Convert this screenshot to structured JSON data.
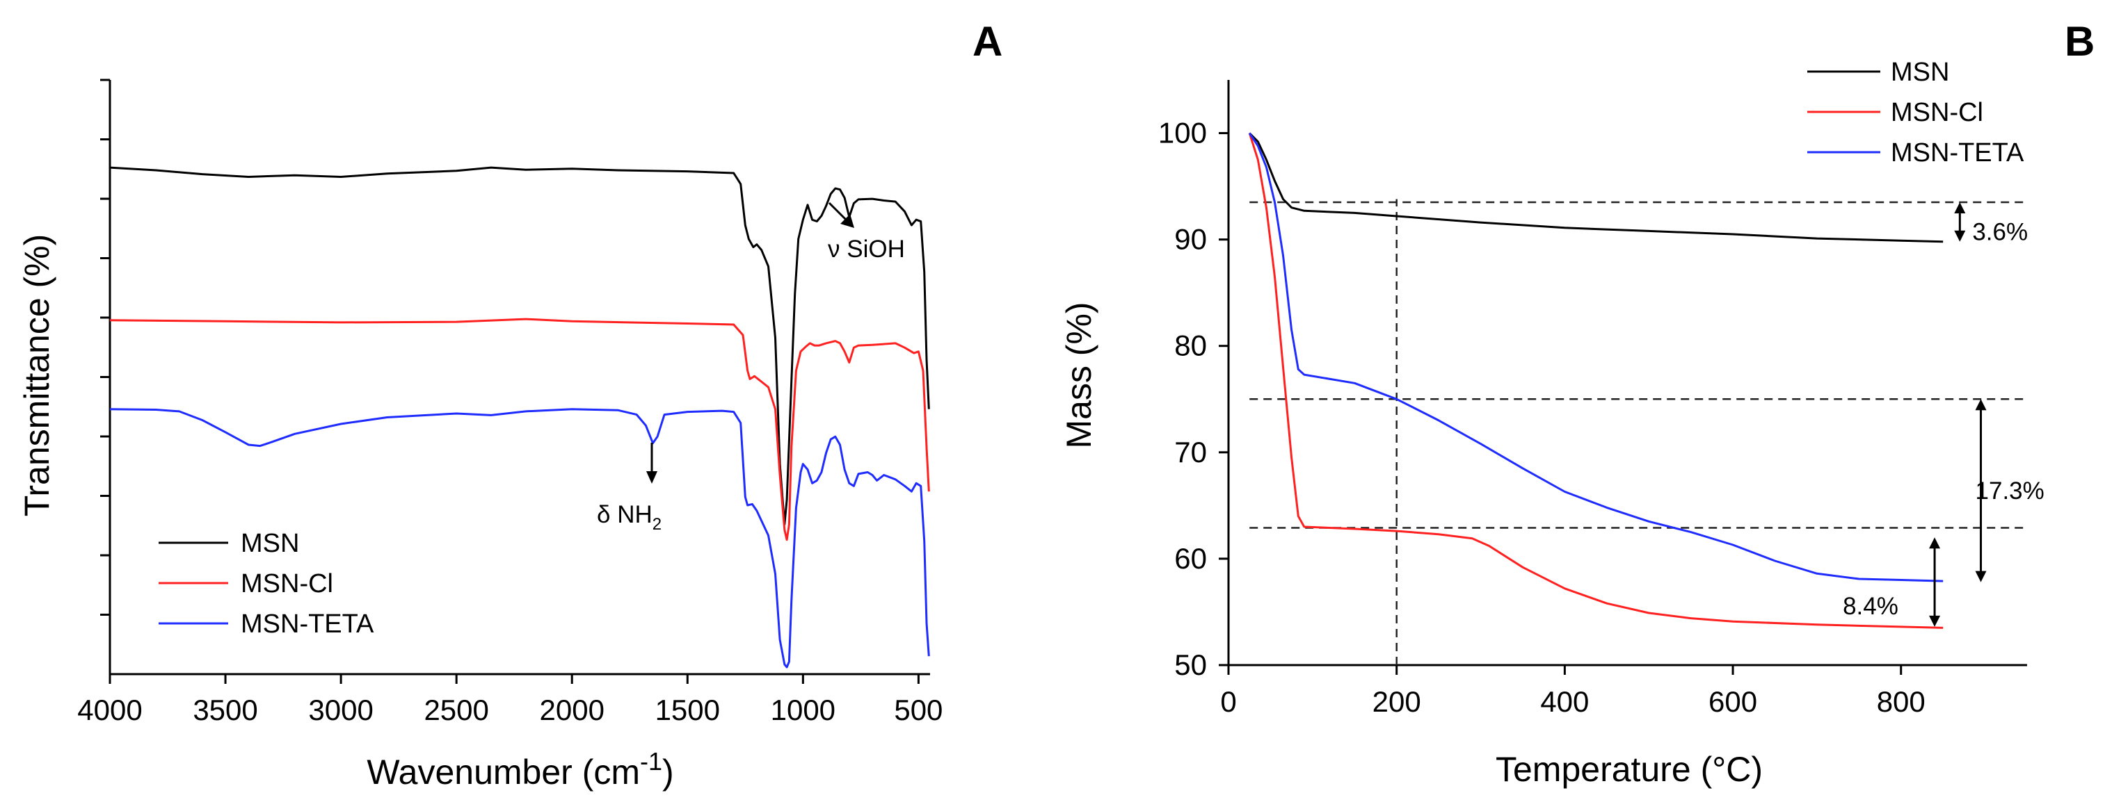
{
  "chart_data": [
    {
      "panel": "A",
      "type": "line",
      "xlabel": "Wavenumber (cm",
      "xlabel_sup": "-1",
      "xlabel_close": ")",
      "ylabel": "Transmittance (%)",
      "xlim": [
        4000,
        450
      ],
      "x_ticks": [
        4000,
        3500,
        3000,
        2500,
        2000,
        1500,
        1000,
        500
      ],
      "y_ticks_count": 10,
      "legend": {
        "position": "bottom-left"
      },
      "annotations": [
        {
          "label": "ν SiOH",
          "x": 830
        },
        {
          "label": "δ NH",
          "sub": "2",
          "x": 1650
        }
      ],
      "series": [
        {
          "name": "MSN",
          "color": "#000000",
          "points": [
            [
              4000,
              0.91
            ],
            [
              3800,
              0.905
            ],
            [
              3600,
              0.898
            ],
            [
              3400,
              0.893
            ],
            [
              3200,
              0.896
            ],
            [
              3000,
              0.893
            ],
            [
              2800,
              0.899
            ],
            [
              2500,
              0.904
            ],
            [
              2350,
              0.91
            ],
            [
              2200,
              0.906
            ],
            [
              2000,
              0.908
            ],
            [
              1800,
              0.905
            ],
            [
              1500,
              0.903
            ],
            [
              1300,
              0.9
            ],
            [
              1270,
              0.88
            ],
            [
              1250,
              0.805
            ],
            [
              1235,
              0.78
            ],
            [
              1215,
              0.765
            ],
            [
              1200,
              0.77
            ],
            [
              1180,
              0.76
            ],
            [
              1150,
              0.73
            ],
            [
              1120,
              0.6
            ],
            [
              1100,
              0.37
            ],
            [
              1080,
              0.26
            ],
            [
              1070,
              0.305
            ],
            [
              1050,
              0.52
            ],
            [
              1035,
              0.68
            ],
            [
              1020,
              0.78
            ],
            [
              1000,
              0.815
            ],
            [
              980,
              0.842
            ],
            [
              960,
              0.815
            ],
            [
              940,
              0.812
            ],
            [
              920,
              0.822
            ],
            [
              900,
              0.84
            ],
            [
              880,
              0.862
            ],
            [
              860,
              0.872
            ],
            [
              840,
              0.87
            ],
            [
              820,
              0.855
            ],
            [
              800,
              0.82
            ],
            [
              780,
              0.845
            ],
            [
              760,
              0.852
            ],
            [
              700,
              0.853
            ],
            [
              650,
              0.85
            ],
            [
              600,
              0.848
            ],
            [
              560,
              0.83
            ],
            [
              530,
              0.805
            ],
            [
              510,
              0.815
            ],
            [
              490,
              0.812
            ],
            [
              475,
              0.72
            ],
            [
              465,
              0.56
            ],
            [
              455,
              0.47
            ]
          ]
        },
        {
          "name": "MSN-Cl",
          "color": "#ff2020",
          "points": [
            [
              4000,
              0.632
            ],
            [
              3500,
              0.63
            ],
            [
              3000,
              0.628
            ],
            [
              2500,
              0.629
            ],
            [
              2200,
              0.634
            ],
            [
              2000,
              0.63
            ],
            [
              1500,
              0.626
            ],
            [
              1300,
              0.624
            ],
            [
              1260,
              0.605
            ],
            [
              1240,
              0.54
            ],
            [
              1230,
              0.525
            ],
            [
              1210,
              0.53
            ],
            [
              1150,
              0.51
            ],
            [
              1120,
              0.47
            ],
            [
              1100,
              0.35
            ],
            [
              1080,
              0.25
            ],
            [
              1070,
              0.232
            ],
            [
              1060,
              0.26
            ],
            [
              1050,
              0.4
            ],
            [
              1030,
              0.54
            ],
            [
              1010,
              0.575
            ],
            [
              990,
              0.583
            ],
            [
              970,
              0.59
            ],
            [
              950,
              0.586
            ],
            [
              930,
              0.586
            ],
            [
              900,
              0.59
            ],
            [
              860,
              0.594
            ],
            [
              840,
              0.59
            ],
            [
              820,
              0.575
            ],
            [
              800,
              0.555
            ],
            [
              780,
              0.582
            ],
            [
              760,
              0.586
            ],
            [
              700,
              0.587
            ],
            [
              600,
              0.59
            ],
            [
              560,
              0.582
            ],
            [
              520,
              0.572
            ],
            [
              500,
              0.575
            ],
            [
              480,
              0.54
            ],
            [
              465,
              0.4
            ],
            [
              455,
              0.32
            ]
          ]
        },
        {
          "name": "MSN-TETA",
          "color": "#1e2cff",
          "points": [
            [
              4000,
              0.47
            ],
            [
              3800,
              0.469
            ],
            [
              3700,
              0.466
            ],
            [
              3600,
              0.45
            ],
            [
              3500,
              0.428
            ],
            [
              3400,
              0.405
            ],
            [
              3350,
              0.403
            ],
            [
              3300,
              0.41
            ],
            [
              3200,
              0.425
            ],
            [
              3000,
              0.443
            ],
            [
              2800,
              0.455
            ],
            [
              2500,
              0.462
            ],
            [
              2350,
              0.459
            ],
            [
              2200,
              0.466
            ],
            [
              2000,
              0.47
            ],
            [
              1800,
              0.468
            ],
            [
              1720,
              0.46
            ],
            [
              1680,
              0.44
            ],
            [
              1650,
              0.408
            ],
            [
              1630,
              0.42
            ],
            [
              1600,
              0.46
            ],
            [
              1500,
              0.465
            ],
            [
              1350,
              0.467
            ],
            [
              1300,
              0.465
            ],
            [
              1270,
              0.445
            ],
            [
              1250,
              0.31
            ],
            [
              1240,
              0.295
            ],
            [
              1220,
              0.297
            ],
            [
              1200,
              0.285
            ],
            [
              1150,
              0.24
            ],
            [
              1120,
              0.17
            ],
            [
              1100,
              0.05
            ],
            [
              1080,
              0.005
            ],
            [
              1070,
              0.0
            ],
            [
              1060,
              0.01
            ],
            [
              1050,
              0.12
            ],
            [
              1030,
              0.29
            ],
            [
              1010,
              0.355
            ],
            [
              1000,
              0.37
            ],
            [
              980,
              0.36
            ],
            [
              960,
              0.335
            ],
            [
              940,
              0.34
            ],
            [
              920,
              0.355
            ],
            [
              900,
              0.39
            ],
            [
              880,
              0.415
            ],
            [
              860,
              0.42
            ],
            [
              840,
              0.405
            ],
            [
              820,
              0.36
            ],
            [
              800,
              0.335
            ],
            [
              780,
              0.33
            ],
            [
              760,
              0.352
            ],
            [
              720,
              0.355
            ],
            [
              700,
              0.35
            ],
            [
              680,
              0.34
            ],
            [
              650,
              0.35
            ],
            [
              600,
              0.342
            ],
            [
              560,
              0.33
            ],
            [
              530,
              0.32
            ],
            [
              510,
              0.335
            ],
            [
              490,
              0.33
            ],
            [
              475,
              0.23
            ],
            [
              465,
              0.08
            ],
            [
              455,
              0.02
            ]
          ]
        }
      ]
    },
    {
      "panel": "B",
      "type": "line",
      "xlabel": "Temperature (°C)",
      "ylabel": "Mass (%)",
      "xlim": [
        0,
        950
      ],
      "ylim": [
        50,
        105
      ],
      "x_ticks": [
        0,
        200,
        400,
        600,
        800
      ],
      "y_ticks": [
        50,
        60,
        70,
        80,
        90,
        100
      ],
      "legend": {
        "position": "top-right"
      },
      "guides": {
        "vertical_x": 200,
        "hlines": [
          {
            "y": 93.5,
            "x_from": 25,
            "x_to": 950
          },
          {
            "y": 75.0,
            "x_from": 25,
            "x_to": 950
          },
          {
            "y": 62.9,
            "x_from": 25,
            "x_to": 950
          }
        ]
      },
      "annotations": [
        {
          "label": "3.6%",
          "y_from": 93.5,
          "y_to": 89.8,
          "x": 870
        },
        {
          "label": "17.3%",
          "y_from": 75.0,
          "y_to": 57.8,
          "x": 895
        },
        {
          "label": "8.4%",
          "y_from": 62.0,
          "y_to": 53.6,
          "x": 840
        }
      ],
      "series": [
        {
          "name": "MSN",
          "color": "#000000",
          "points": [
            [
              25,
              100
            ],
            [
              35,
              99.2
            ],
            [
              45,
              97.5
            ],
            [
              55,
              95.5
            ],
            [
              65,
              93.8
            ],
            [
              75,
              93.0
            ],
            [
              90,
              92.7
            ],
            [
              150,
              92.5
            ],
            [
              200,
              92.2
            ],
            [
              300,
              91.6
            ],
            [
              400,
              91.1
            ],
            [
              500,
              90.8
            ],
            [
              600,
              90.5
            ],
            [
              700,
              90.1
            ],
            [
              800,
              89.9
            ],
            [
              850,
              89.8
            ]
          ]
        },
        {
          "name": "MSN-Cl",
          "color": "#ff2020",
          "points": [
            [
              25,
              100
            ],
            [
              35,
              97.5
            ],
            [
              45,
              93.0
            ],
            [
              55,
              86.5
            ],
            [
              65,
              78.0
            ],
            [
              75,
              69.5
            ],
            [
              83,
              64.0
            ],
            [
              90,
              63.0
            ],
            [
              150,
              62.8
            ],
            [
              200,
              62.6
            ],
            [
              250,
              62.3
            ],
            [
              290,
              61.9
            ],
            [
              310,
              61.2
            ],
            [
              350,
              59.2
            ],
            [
              400,
              57.2
            ],
            [
              450,
              55.8
            ],
            [
              500,
              54.9
            ],
            [
              550,
              54.4
            ],
            [
              600,
              54.1
            ],
            [
              700,
              53.8
            ],
            [
              800,
              53.6
            ],
            [
              850,
              53.5
            ]
          ]
        },
        {
          "name": "MSN-TETA",
          "color": "#1e2cff",
          "points": [
            [
              25,
              100
            ],
            [
              35,
              98.8
            ],
            [
              45,
              96.8
            ],
            [
              55,
              93.5
            ],
            [
              65,
              88.5
            ],
            [
              75,
              81.5
            ],
            [
              83,
              77.8
            ],
            [
              90,
              77.3
            ],
            [
              150,
              76.5
            ],
            [
              200,
              75.0
            ],
            [
              250,
              73.0
            ],
            [
              300,
              70.8
            ],
            [
              350,
              68.5
            ],
            [
              400,
              66.3
            ],
            [
              450,
              64.8
            ],
            [
              500,
              63.5
            ],
            [
              550,
              62.5
            ],
            [
              600,
              61.3
            ],
            [
              650,
              59.8
            ],
            [
              700,
              58.6
            ],
            [
              750,
              58.1
            ],
            [
              800,
              58.0
            ],
            [
              850,
              57.9
            ]
          ]
        }
      ]
    }
  ]
}
